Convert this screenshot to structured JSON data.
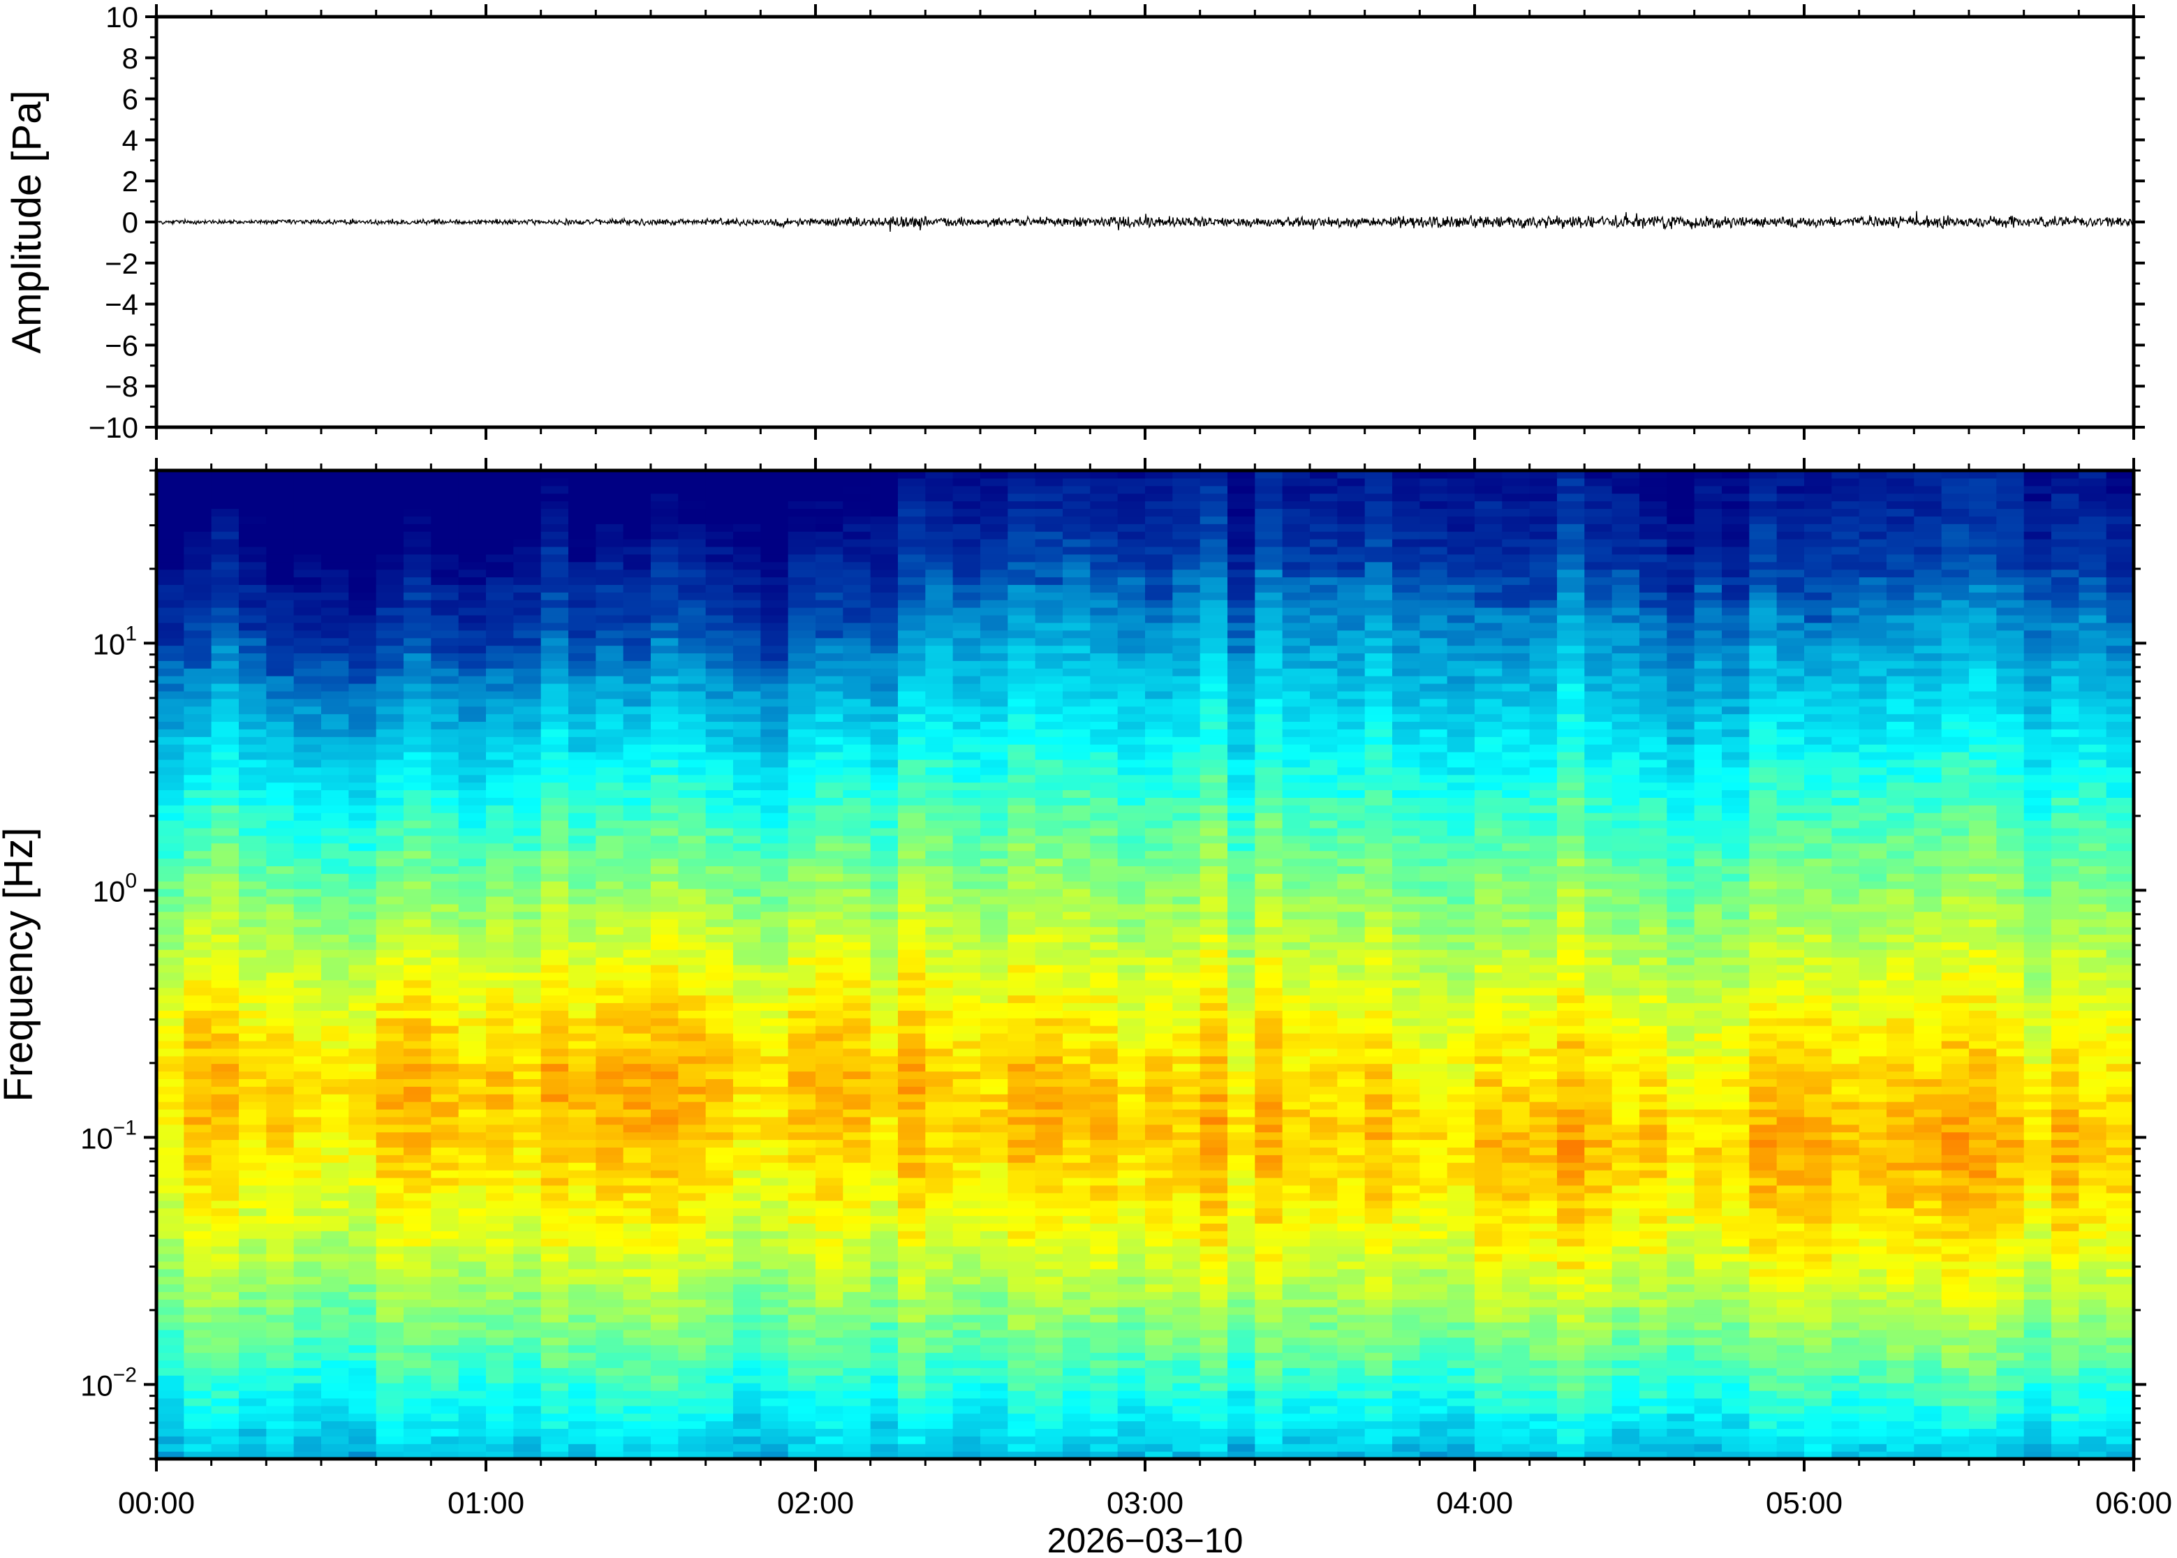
{
  "chart_data": [
    {
      "type": "line",
      "ylabel": "Amplitude [Pa]",
      "ylim": [
        -10,
        10
      ],
      "yticks": [
        10,
        8,
        6,
        4,
        2,
        0,
        -2,
        -4,
        -6,
        -8,
        -10
      ],
      "yticklabels": [
        "10",
        "8",
        "6",
        "4",
        "2",
        "0",
        "−2",
        "−4",
        "−6",
        "−8",
        "−10"
      ],
      "xlim": [
        "00:00",
        "06:00"
      ],
      "series_summary": "noise trace centred at 0 Pa, peak amplitude about 0.5 Pa",
      "amplitude_envelope": {
        "time_hours": [
          0.0,
          0.5,
          1.0,
          1.5,
          2.0,
          2.2,
          2.5,
          2.8,
          3.0,
          3.5,
          4.0,
          4.3,
          4.6,
          5.0,
          5.5,
          6.0
        ],
        "peak_pa": [
          0.15,
          0.15,
          0.15,
          0.2,
          0.25,
          0.35,
          0.3,
          0.3,
          0.35,
          0.3,
          0.4,
          0.35,
          0.45,
          0.3,
          0.4,
          0.3
        ]
      },
      "grid": false
    },
    {
      "type": "heatmap",
      "ylabel": "Frequency [Hz]",
      "yscale": "log",
      "ylim": [
        0.005,
        50
      ],
      "yticks": [
        0.01,
        0.1,
        1,
        10
      ],
      "ytick_base": [
        "10",
        "10",
        "10",
        "10"
      ],
      "ytick_exp": [
        "−2",
        "−1",
        "0",
        "1"
      ],
      "xlabel": "2026−03−10",
      "xlim": [
        "00:00",
        "06:00"
      ],
      "xticklabels": [
        "00:00",
        "01:00",
        "02:00",
        "03:00",
        "04:00",
        "05:00",
        "06:00"
      ],
      "colormap": "jet",
      "band_summary": {
        "time_hours": [
          0.0,
          0.5,
          1.0,
          1.5,
          2.0,
          2.5,
          3.0,
          3.5,
          4.0,
          4.5,
          5.0,
          5.5,
          6.0
        ],
        "upper_energy_edge_hz": [
          10,
          9,
          10,
          10,
          11,
          20,
          17,
          20,
          18,
          17,
          15,
          20,
          16
        ],
        "peak_band_hz": [
          0.17,
          0.17,
          0.17,
          0.17,
          0.18,
          0.15,
          0.12,
          0.12,
          0.1,
          0.1,
          0.1,
          0.1,
          0.1
        ]
      },
      "grid": false
    }
  ]
}
